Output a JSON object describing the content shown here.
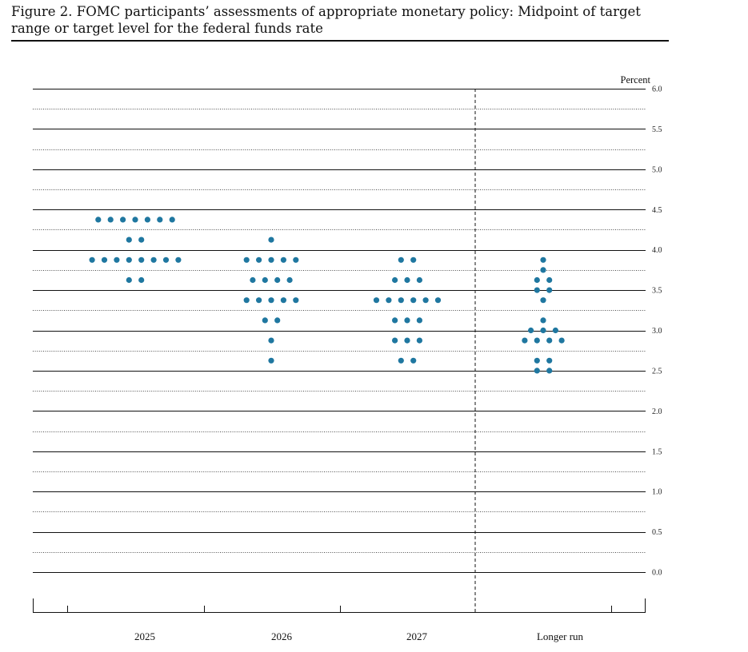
{
  "figure": {
    "title": "Figure 2.  FOMC participants’ assessments of appropriate monetary policy: Midpoint of target range or target level for the federal funds rate"
  },
  "chart_data": {
    "type": "scatter",
    "ylabel": "Percent",
    "ylim": [
      0,
      6
    ],
    "yticks": [
      "0.0",
      "0.5",
      "1.0",
      "1.5",
      "2.0",
      "2.5",
      "3.0",
      "3.5",
      "4.0",
      "4.5",
      "5.0",
      "5.5",
      "6.0"
    ],
    "categories": [
      "2025",
      "2026",
      "2027",
      "Longer run"
    ],
    "dot_color": "#1f77a0",
    "series": [
      {
        "category": "2025",
        "counts": [
          {
            "rate": 4.375,
            "n": 7
          },
          {
            "rate": 4.125,
            "n": 2
          },
          {
            "rate": 3.875,
            "n": 8
          },
          {
            "rate": 3.625,
            "n": 2
          }
        ]
      },
      {
        "category": "2026",
        "counts": [
          {
            "rate": 4.125,
            "n": 1
          },
          {
            "rate": 3.875,
            "n": 5
          },
          {
            "rate": 3.625,
            "n": 4
          },
          {
            "rate": 3.375,
            "n": 5
          },
          {
            "rate": 3.125,
            "n": 2
          },
          {
            "rate": 2.875,
            "n": 1
          },
          {
            "rate": 2.625,
            "n": 1
          }
        ]
      },
      {
        "category": "2027",
        "counts": [
          {
            "rate": 3.875,
            "n": 2
          },
          {
            "rate": 3.625,
            "n": 3
          },
          {
            "rate": 3.375,
            "n": 6
          },
          {
            "rate": 3.125,
            "n": 3
          },
          {
            "rate": 2.875,
            "n": 3
          },
          {
            "rate": 2.625,
            "n": 2
          }
        ]
      },
      {
        "category": "Longer run",
        "counts": [
          {
            "rate": 3.875,
            "n": 1
          },
          {
            "rate": 3.75,
            "n": 1
          },
          {
            "rate": 3.625,
            "n": 2
          },
          {
            "rate": 3.5,
            "n": 2
          },
          {
            "rate": 3.375,
            "n": 1
          },
          {
            "rate": 3.125,
            "n": 1
          },
          {
            "rate": 3.0,
            "n": 3
          },
          {
            "rate": 2.875,
            "n": 4
          },
          {
            "rate": 2.625,
            "n": 2
          },
          {
            "rate": 2.5,
            "n": 2
          }
        ]
      }
    ]
  }
}
